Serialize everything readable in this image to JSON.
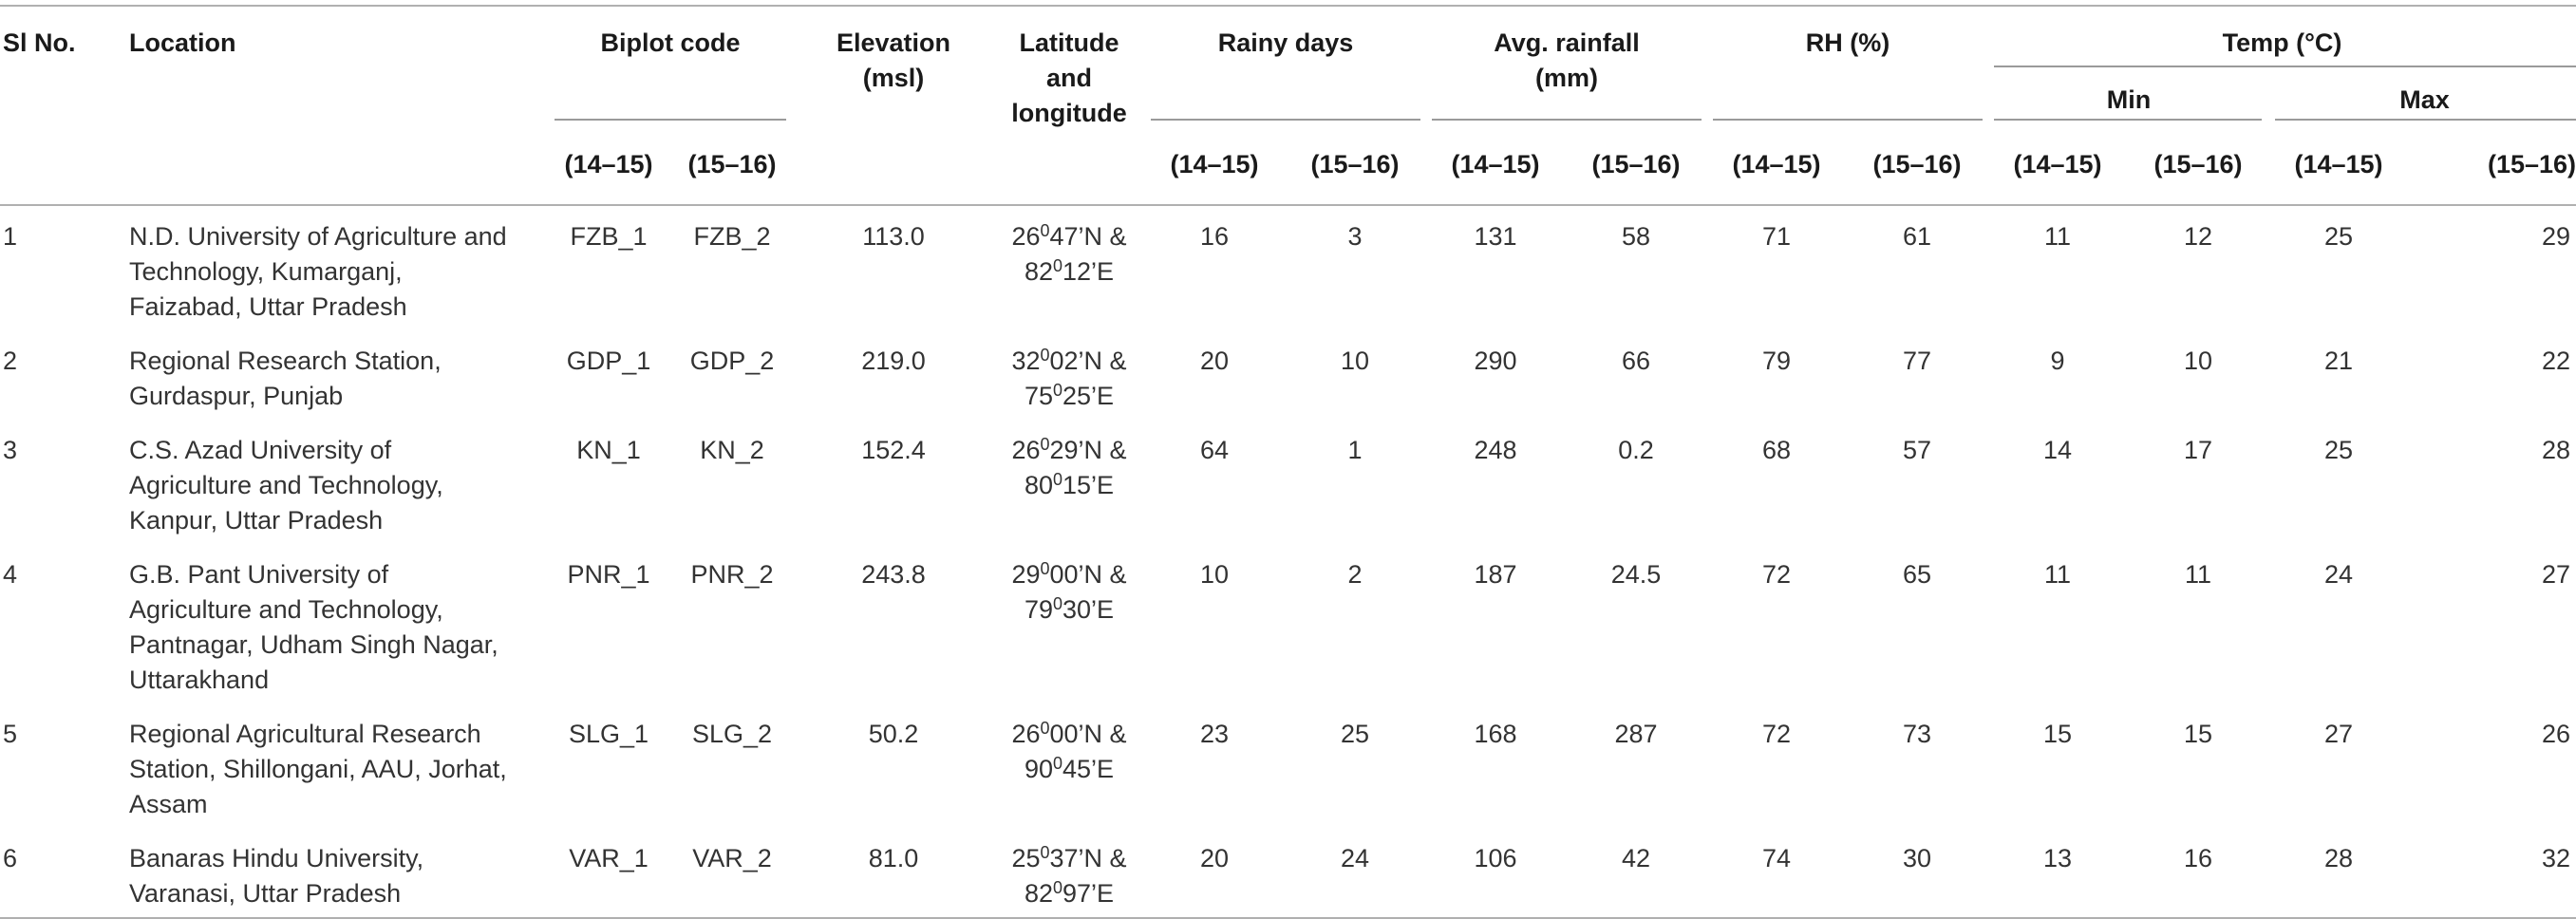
{
  "headers": {
    "sl_no": "Sl No.",
    "location": "Location",
    "biplot_code": "Biplot code",
    "elevation": "Elevation (msl)",
    "latlong": "Latitude and longitude",
    "rainy_days": "Rainy days",
    "avg_rainfall": "Avg. rainfall (mm)",
    "rh": "RH (%)",
    "temp": "Temp (°C)",
    "min": "Min",
    "max": "Max",
    "y1": "(14–15)",
    "y2": "(15–16)"
  },
  "rows": [
    {
      "sl": "1",
      "location": "N.D. University of Agriculture and Technology, Kumarganj, Faizabad, Uttar Pradesh",
      "code1": "FZB_1",
      "code2": "FZB_2",
      "elevation": "113.0",
      "lat_deg": "26",
      "lat_rest": "47’N &",
      "lon_deg": "82",
      "lon_rest": "12’E",
      "rainy1": "16",
      "rainy2": "3",
      "rain1": "131",
      "rain2": "58",
      "rh1": "71",
      "rh2": "61",
      "min1": "11",
      "min2": "12",
      "max1": "25",
      "max2": "29"
    },
    {
      "sl": "2",
      "location": "Regional Research Station, Gurdaspur, Punjab",
      "code1": "GDP_1",
      "code2": "GDP_2",
      "elevation": "219.0",
      "lat_deg": "32",
      "lat_rest": "02’N &",
      "lon_deg": "75",
      "lon_rest": "25’E",
      "rainy1": "20",
      "rainy2": "10",
      "rain1": "290",
      "rain2": "66",
      "rh1": "79",
      "rh2": "77",
      "min1": "9",
      "min2": "10",
      "max1": "21",
      "max2": "22"
    },
    {
      "sl": "3",
      "location": "C.S. Azad University of Agriculture and Technology, Kanpur, Uttar Pradesh",
      "code1": "KN_1",
      "code2": "KN_2",
      "elevation": "152.4",
      "lat_deg": "26",
      "lat_rest": "29’N &",
      "lon_deg": "80",
      "lon_rest": "15’E",
      "rainy1": "64",
      "rainy2": "1",
      "rain1": "248",
      "rain2": "0.2",
      "rh1": "68",
      "rh2": "57",
      "min1": "14",
      "min2": "17",
      "max1": "25",
      "max2": "28"
    },
    {
      "sl": "4",
      "location": "G.B. Pant University of Agriculture and Technology, Pantnagar, Udham Singh Nagar, Uttarakhand",
      "code1": "PNR_1",
      "code2": "PNR_2",
      "elevation": "243.8",
      "lat_deg": "29",
      "lat_rest": "00’N &",
      "lon_deg": "79",
      "lon_rest": "30’E",
      "rainy1": "10",
      "rainy2": "2",
      "rain1": "187",
      "rain2": "24.5",
      "rh1": "72",
      "rh2": "65",
      "min1": "11",
      "min2": "11",
      "max1": "24",
      "max2": "27"
    },
    {
      "sl": "5",
      "location": "Regional Agricultural Research Station, Shillongani, AAU, Jorhat, Assam",
      "code1": "SLG_1",
      "code2": "SLG_2",
      "elevation": "50.2",
      "lat_deg": "26",
      "lat_rest": "00’N &",
      "lon_deg": "90",
      "lon_rest": "45’E",
      "rainy1": "23",
      "rainy2": "25",
      "rain1": "168",
      "rain2": "287",
      "rh1": "72",
      "rh2": "73",
      "min1": "15",
      "min2": "15",
      "max1": "27",
      "max2": "26"
    },
    {
      "sl": "6",
      "location": "Banaras Hindu University, Varanasi, Uttar Pradesh",
      "code1": "VAR_1",
      "code2": "VAR_2",
      "elevation": "81.0",
      "lat_deg": "25",
      "lat_rest": "37’N &",
      "lon_deg": "82",
      "lon_rest": "97’E",
      "rainy1": "20",
      "rainy2": "24",
      "rain1": "106",
      "rain2": "42",
      "rh1": "74",
      "rh2": "30",
      "min1": "13",
      "min2": "16",
      "max1": "28",
      "max2": "32"
    }
  ],
  "degree_mark": "0"
}
